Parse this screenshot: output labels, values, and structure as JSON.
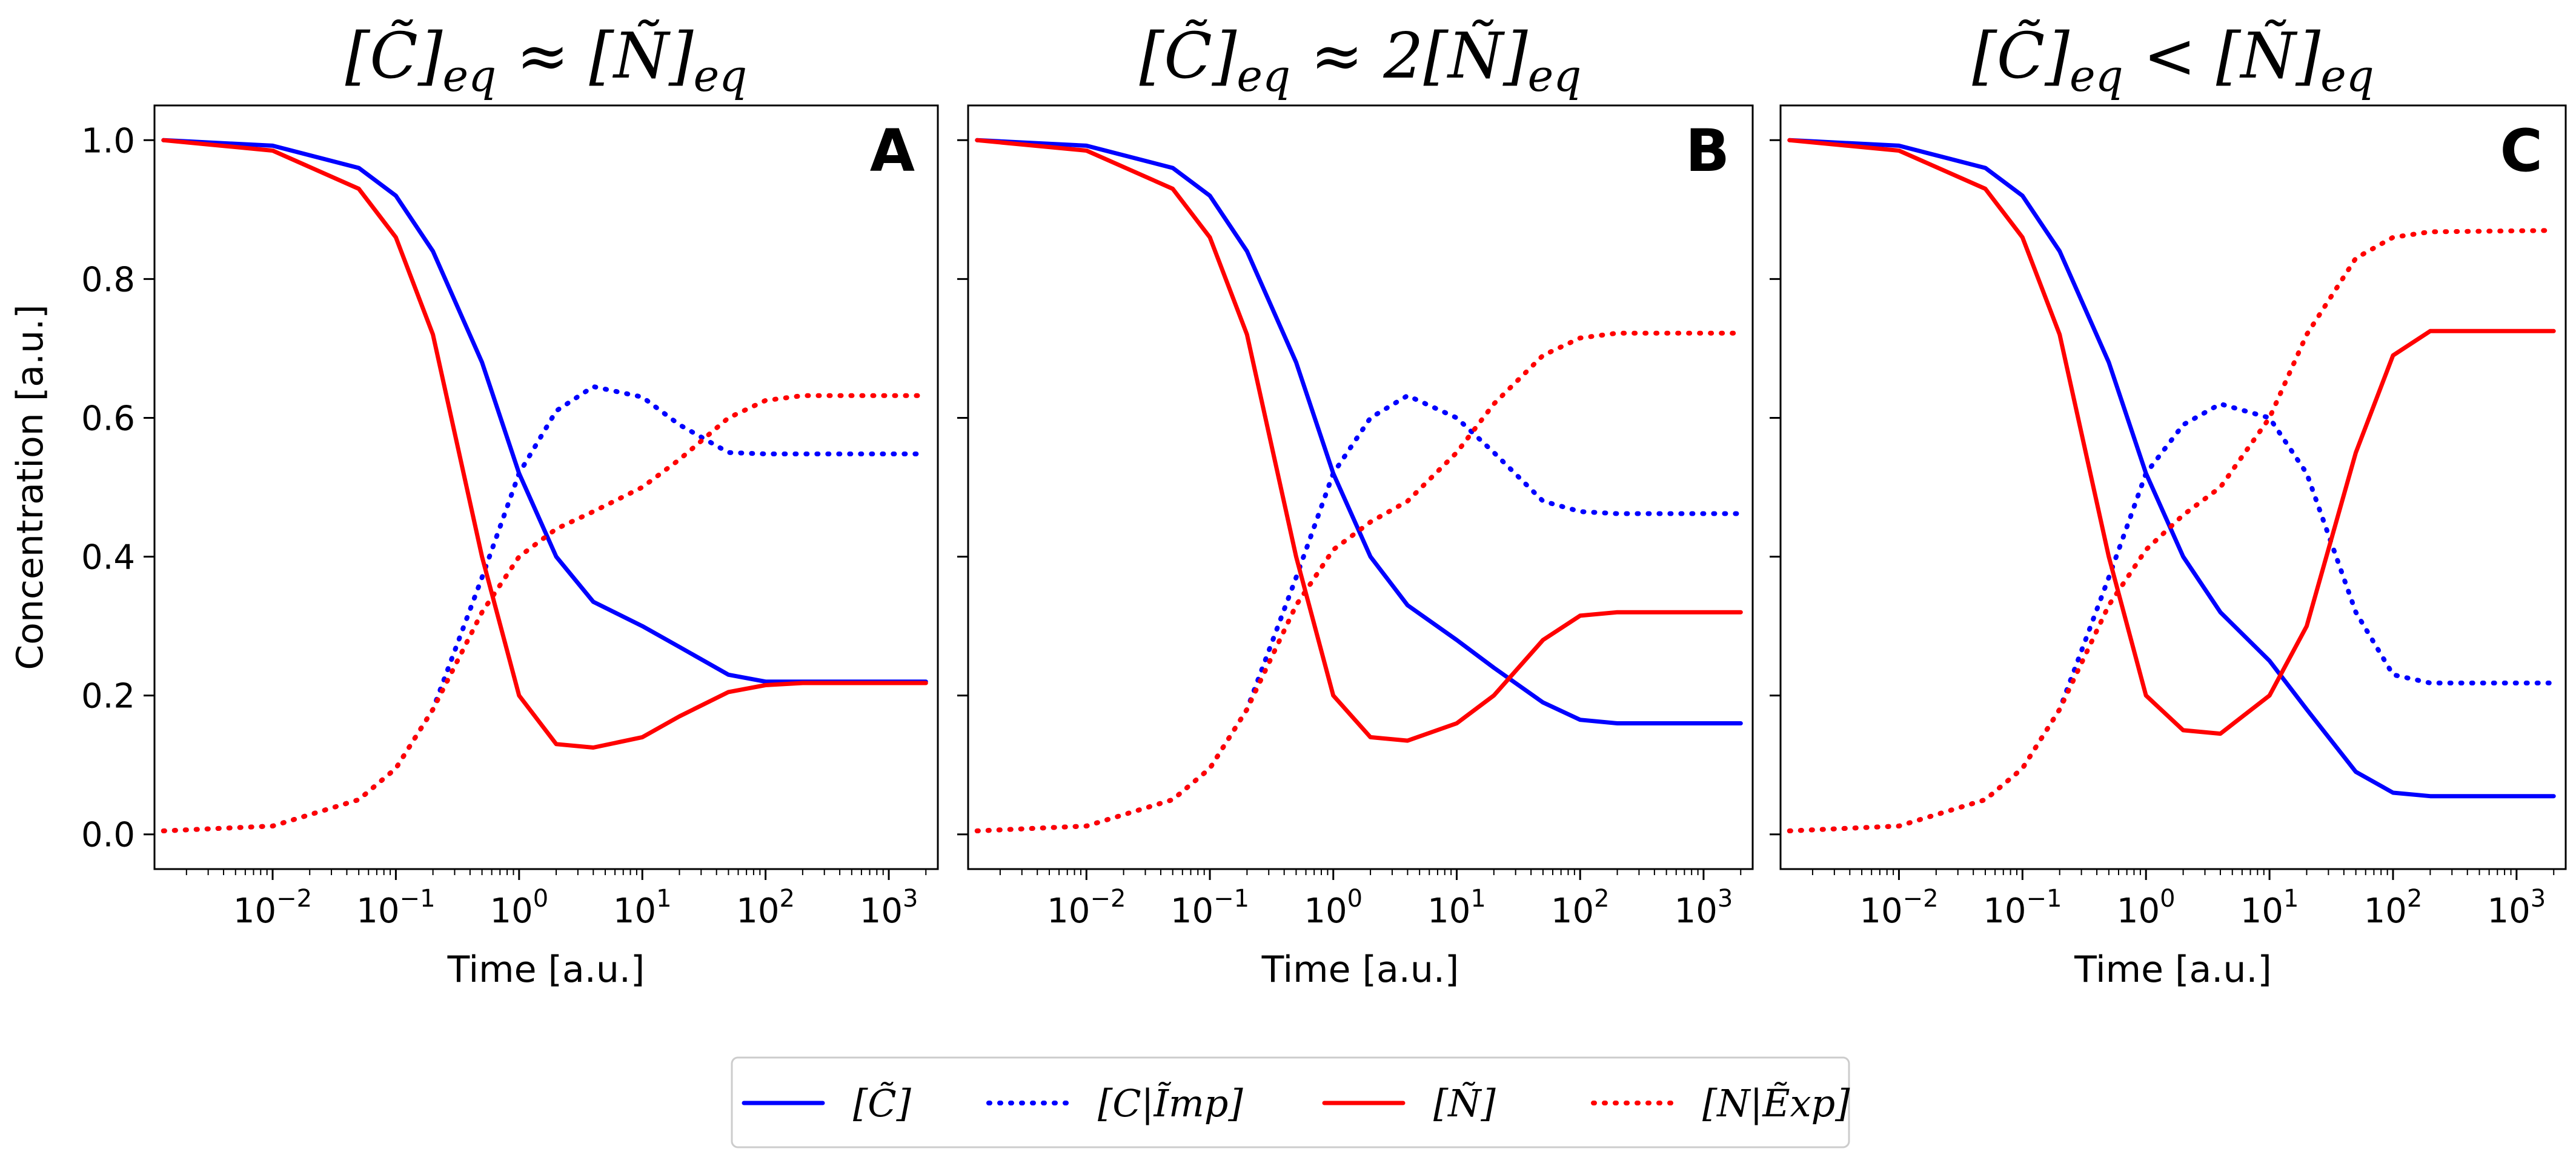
{
  "chart_data": [
    {
      "type": "line",
      "title": "[C̃]eq ≈ [Ñ]eq",
      "panel_label": "A",
      "xlabel": "Time [a.u.]",
      "ylabel": "Concentration [a.u.]",
      "xscale": "log",
      "xlim": [
        0.0011,
        2500
      ],
      "ylim": [
        -0.05,
        1.05
      ],
      "xticks": [
        "10⁻²",
        "10⁻¹",
        "10⁰",
        "10¹",
        "10²",
        "10³"
      ],
      "yticks": [
        "0.0",
        "0.2",
        "0.4",
        "0.6",
        "0.8",
        "1.0"
      ],
      "x": [
        0.0013,
        0.01,
        0.05,
        0.1,
        0.2,
        0.5,
        1,
        2,
        4,
        10,
        20,
        50,
        100,
        200,
        2000
      ],
      "series": [
        {
          "name": "[C̃]",
          "color": "#0000ff",
          "style": "solid",
          "values": [
            1.0,
            0.992,
            0.96,
            0.92,
            0.84,
            0.68,
            0.52,
            0.4,
            0.335,
            0.3,
            0.27,
            0.23,
            0.22,
            0.22,
            0.22
          ]
        },
        {
          "name": "[C|Ĩmp]",
          "color": "#0000ff",
          "style": "dotted",
          "values": [
            0.005,
            0.012,
            0.05,
            0.095,
            0.18,
            0.37,
            0.52,
            0.61,
            0.645,
            0.63,
            0.59,
            0.55,
            0.548,
            0.548,
            0.548
          ]
        },
        {
          "name": "[Ñ]",
          "color": "#ff0000",
          "style": "solid",
          "values": [
            1.0,
            0.985,
            0.93,
            0.86,
            0.72,
            0.4,
            0.2,
            0.13,
            0.125,
            0.14,
            0.17,
            0.205,
            0.215,
            0.218,
            0.218
          ]
        },
        {
          "name": "[N|Ẽxp]",
          "color": "#ff0000",
          "style": "dotted",
          "values": [
            0.005,
            0.012,
            0.05,
            0.095,
            0.18,
            0.32,
            0.4,
            0.44,
            0.465,
            0.5,
            0.54,
            0.6,
            0.625,
            0.632,
            0.632
          ]
        }
      ]
    },
    {
      "type": "line",
      "title": "[C̃]eq ≈ 2[Ñ]eq",
      "panel_label": "B",
      "xlabel": "Time [a.u.]",
      "xscale": "log",
      "xlim": [
        0.0011,
        2500
      ],
      "ylim": [
        -0.05,
        1.05
      ],
      "xticks": [
        "10⁻²",
        "10⁻¹",
        "10⁰",
        "10¹",
        "10²",
        "10³"
      ],
      "x": [
        0.0013,
        0.01,
        0.05,
        0.1,
        0.2,
        0.5,
        1,
        2,
        4,
        10,
        20,
        50,
        100,
        200,
        2000
      ],
      "series": [
        {
          "name": "[C̃]",
          "color": "#0000ff",
          "style": "solid",
          "values": [
            1.0,
            0.992,
            0.96,
            0.92,
            0.84,
            0.68,
            0.52,
            0.4,
            0.33,
            0.28,
            0.24,
            0.19,
            0.165,
            0.16,
            0.16
          ]
        },
        {
          "name": "[C|Ĩmp]",
          "color": "#0000ff",
          "style": "dotted",
          "values": [
            0.005,
            0.012,
            0.05,
            0.095,
            0.18,
            0.37,
            0.52,
            0.6,
            0.632,
            0.6,
            0.55,
            0.48,
            0.465,
            0.462,
            0.462
          ]
        },
        {
          "name": "[Ñ]",
          "color": "#ff0000",
          "style": "solid",
          "values": [
            1.0,
            0.985,
            0.93,
            0.86,
            0.72,
            0.4,
            0.2,
            0.14,
            0.135,
            0.16,
            0.2,
            0.28,
            0.315,
            0.32,
            0.32
          ]
        },
        {
          "name": "[N|Ẽxp]",
          "color": "#ff0000",
          "style": "dotted",
          "values": [
            0.005,
            0.012,
            0.05,
            0.095,
            0.18,
            0.33,
            0.41,
            0.45,
            0.48,
            0.55,
            0.62,
            0.69,
            0.715,
            0.722,
            0.722
          ]
        }
      ]
    },
    {
      "type": "line",
      "title": "[C̃]eq < [Ñ]eq",
      "panel_label": "C",
      "xlabel": "Time [a.u.]",
      "xscale": "log",
      "xlim": [
        0.0011,
        2500
      ],
      "ylim": [
        -0.05,
        1.05
      ],
      "xticks": [
        "10⁻²",
        "10⁻¹",
        "10⁰",
        "10¹",
        "10²",
        "10³"
      ],
      "x": [
        0.0013,
        0.01,
        0.05,
        0.1,
        0.2,
        0.5,
        1,
        2,
        4,
        10,
        20,
        50,
        100,
        200,
        2000
      ],
      "series": [
        {
          "name": "[C̃]",
          "color": "#0000ff",
          "style": "solid",
          "values": [
            1.0,
            0.992,
            0.96,
            0.92,
            0.84,
            0.68,
            0.52,
            0.4,
            0.32,
            0.25,
            0.18,
            0.09,
            0.06,
            0.055,
            0.055
          ]
        },
        {
          "name": "[C|Ĩmp]",
          "color": "#0000ff",
          "style": "dotted",
          "values": [
            0.005,
            0.012,
            0.05,
            0.095,
            0.18,
            0.37,
            0.52,
            0.59,
            0.62,
            0.6,
            0.52,
            0.32,
            0.23,
            0.218,
            0.218
          ]
        },
        {
          "name": "[Ñ]",
          "color": "#ff0000",
          "style": "solid",
          "values": [
            1.0,
            0.985,
            0.93,
            0.86,
            0.72,
            0.4,
            0.2,
            0.15,
            0.145,
            0.2,
            0.3,
            0.55,
            0.69,
            0.725,
            0.725
          ]
        },
        {
          "name": "[N|Ẽxp]",
          "color": "#ff0000",
          "style": "dotted",
          "values": [
            0.005,
            0.012,
            0.05,
            0.095,
            0.18,
            0.33,
            0.41,
            0.46,
            0.5,
            0.6,
            0.72,
            0.83,
            0.86,
            0.868,
            0.87
          ]
        }
      ]
    }
  ],
  "legend": {
    "placement": "bottom-center",
    "entries": [
      {
        "label": "[C̃]",
        "color": "#0000ff",
        "style": "solid"
      },
      {
        "label": "[C|Ĩmp]",
        "color": "#0000ff",
        "style": "dotted"
      },
      {
        "label": "[Ñ]",
        "color": "#ff0000",
        "style": "solid"
      },
      {
        "label": "[N|Ẽxp]",
        "color": "#ff0000",
        "style": "dotted"
      }
    ]
  }
}
